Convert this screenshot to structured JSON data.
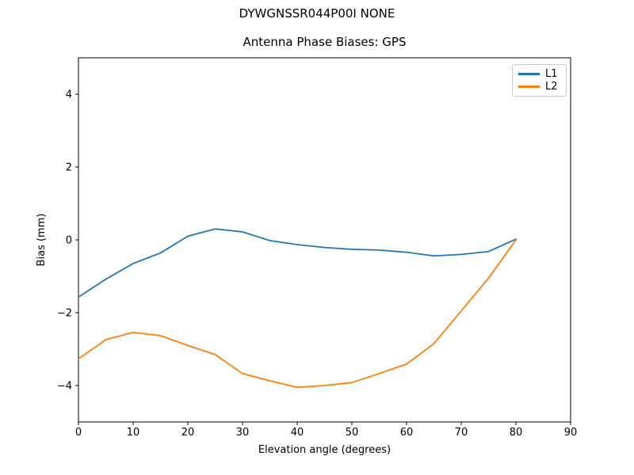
{
  "chart_data": {
    "type": "line",
    "suptitle": "DYWGNSSR044P00I NONE",
    "title": "Antenna Phase Biases: GPS",
    "xlabel": "Elevation angle (degrees)",
    "ylabel": "Bias (mm)",
    "xlim": [
      0,
      90
    ],
    "ylim": [
      -5,
      5
    ],
    "x_ticks": [
      0,
      10,
      20,
      30,
      40,
      50,
      60,
      70,
      80,
      90
    ],
    "y_ticks": [
      -4,
      -2,
      0,
      2,
      4
    ],
    "grid": false,
    "legend_position": "upper right",
    "x": [
      0,
      5,
      10,
      15,
      20,
      25,
      30,
      35,
      40,
      45,
      50,
      55,
      60,
      65,
      70,
      75,
      80
    ],
    "series": [
      {
        "name": "L1",
        "color": "#1f77b4",
        "values": [
          -1.57,
          -1.08,
          -0.65,
          -0.36,
          0.1,
          0.3,
          0.22,
          -0.02,
          -0.13,
          -0.21,
          -0.26,
          -0.28,
          -0.34,
          -0.44,
          -0.4,
          -0.32,
          0.02
        ]
      },
      {
        "name": "L2",
        "color": "#ff7f0e",
        "values": [
          -3.27,
          -2.74,
          -2.54,
          -2.63,
          -2.9,
          -3.15,
          -3.67,
          -3.87,
          -4.05,
          -4.0,
          -3.92,
          -3.67,
          -3.41,
          -2.85,
          -1.95,
          -1.05,
          0.0
        ]
      }
    ],
    "axis_color": "#000000",
    "background_color": "#ffffff"
  }
}
